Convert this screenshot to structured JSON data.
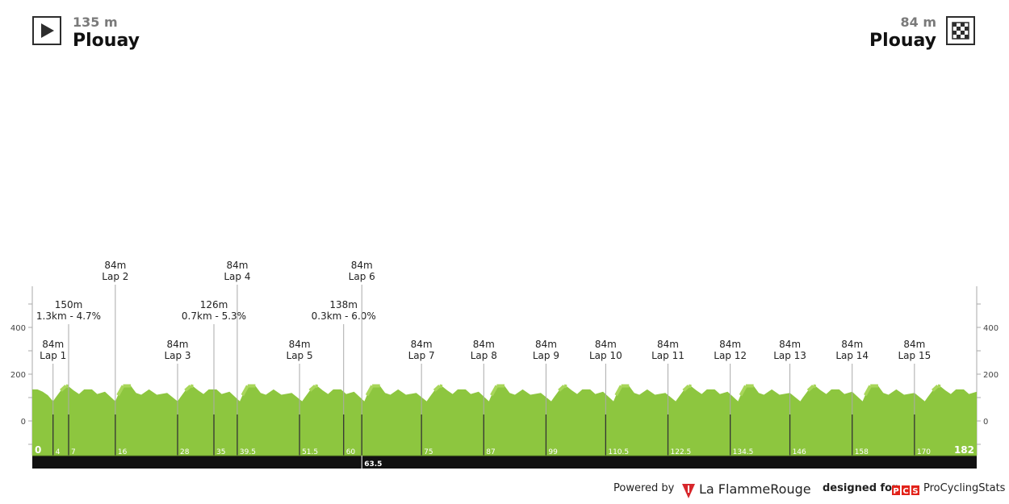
{
  "start": {
    "altitude": "135 m",
    "name": "Plouay",
    "icon": "play-triangle-icon"
  },
  "finish": {
    "altitude": "84 m",
    "name": "Plouay",
    "icon": "checkered-flag-icon"
  },
  "colors": {
    "profile_fill": "#8dc63f",
    "profile_highlight": "#a8d65a",
    "axis_gray": "#aaaaaa",
    "distance_bar": "#111111",
    "flamme_red": "#d7262b",
    "pcs_red": "#e2231a"
  },
  "chart_data": {
    "type": "area",
    "x_unit": "km",
    "y_unit": "m",
    "xlim": [
      0,
      182
    ],
    "ylim": [
      -150,
      550
    ],
    "y_ticks": [
      0,
      200,
      400
    ],
    "y_tick_labels": [
      "0",
      "200",
      "400"
    ],
    "x_markers": [
      {
        "km": 0,
        "label": "0"
      },
      {
        "km": 4,
        "label": "4"
      },
      {
        "km": 7,
        "label": "7"
      },
      {
        "km": 16,
        "label": "16"
      },
      {
        "km": 28,
        "label": "28"
      },
      {
        "km": 35,
        "label": "35"
      },
      {
        "km": 39.5,
        "label": "39.5"
      },
      {
        "km": 51.5,
        "label": "51.5"
      },
      {
        "km": 60,
        "label": "60"
      },
      {
        "km": 63.5,
        "label": "63.5"
      },
      {
        "km": 75,
        "label": "75"
      },
      {
        "km": 87,
        "label": "87"
      },
      {
        "km": 99,
        "label": "99"
      },
      {
        "km": 110.5,
        "label": "110.5"
      },
      {
        "km": 122.5,
        "label": "122.5"
      },
      {
        "km": 134.5,
        "label": "134.5"
      },
      {
        "km": 146,
        "label": "146"
      },
      {
        "km": 158,
        "label": "158"
      },
      {
        "km": 170,
        "label": "170"
      },
      {
        "km": 182,
        "label": "182"
      }
    ],
    "annotations": [
      {
        "km": 4,
        "line1": "84m",
        "line2": "Lap 1",
        "tier": 1
      },
      {
        "km": 7,
        "line1": "150m",
        "line2": "1.3km - 4.7%",
        "tier": 2
      },
      {
        "km": 16,
        "line1": "84m",
        "line2": "Lap 2",
        "tier": 3
      },
      {
        "km": 28,
        "line1": "84m",
        "line2": "Lap 3",
        "tier": 1
      },
      {
        "km": 35,
        "line1": "126m",
        "line2": "0.7km - 5.3%",
        "tier": 2
      },
      {
        "km": 39.5,
        "line1": "84m",
        "line2": "Lap 4",
        "tier": 3
      },
      {
        "km": 51.5,
        "line1": "84m",
        "line2": "Lap 5",
        "tier": 1
      },
      {
        "km": 60,
        "line1": "138m",
        "line2": "0.3km - 6.0%",
        "tier": 2
      },
      {
        "km": 63.5,
        "line1": "84m",
        "line2": "Lap 6",
        "tier": 3
      },
      {
        "km": 75,
        "line1": "84m",
        "line2": "Lap 7",
        "tier": 1
      },
      {
        "km": 87,
        "line1": "84m",
        "line2": "Lap 8",
        "tier": 1
      },
      {
        "km": 99,
        "line1": "84m",
        "line2": "Lap 9",
        "tier": 1
      },
      {
        "km": 110.5,
        "line1": "84m",
        "line2": "Lap 10",
        "tier": 1
      },
      {
        "km": 122.5,
        "line1": "84m",
        "line2": "Lap 11",
        "tier": 1
      },
      {
        "km": 134.5,
        "line1": "84m",
        "line2": "Lap 12",
        "tier": 1
      },
      {
        "km": 146,
        "line1": "84m",
        "line2": "Lap 13",
        "tier": 1
      },
      {
        "km": 158,
        "line1": "84m",
        "line2": "Lap 14",
        "tier": 1
      },
      {
        "km": 170,
        "line1": "84m",
        "line2": "Lap 15",
        "tier": 1
      }
    ],
    "profile_km": [
      0,
      1,
      2,
      3,
      4,
      4.5,
      5.5,
      6.5,
      7,
      8,
      9,
      10,
      11.5,
      12.5,
      14,
      16,
      16.5,
      17.5,
      19,
      20,
      21,
      22.5,
      24,
      26,
      28
    ],
    "profile_m": [
      135,
      135,
      125,
      110,
      84,
      100,
      130,
      150,
      148,
      130,
      115,
      135,
      135,
      115,
      125,
      84,
      110,
      150,
      150,
      120,
      112,
      135,
      112,
      120,
      84
    ],
    "profile_repeats_from_km": 4,
    "profile_lap_km": 12.0
  },
  "footer": {
    "powered_by": "Powered by",
    "flamme_brand": "La FlammeRouge",
    "designed_for": "designed for",
    "pcs_brand": "PCS",
    "procycling": "ProCyclingStats"
  }
}
